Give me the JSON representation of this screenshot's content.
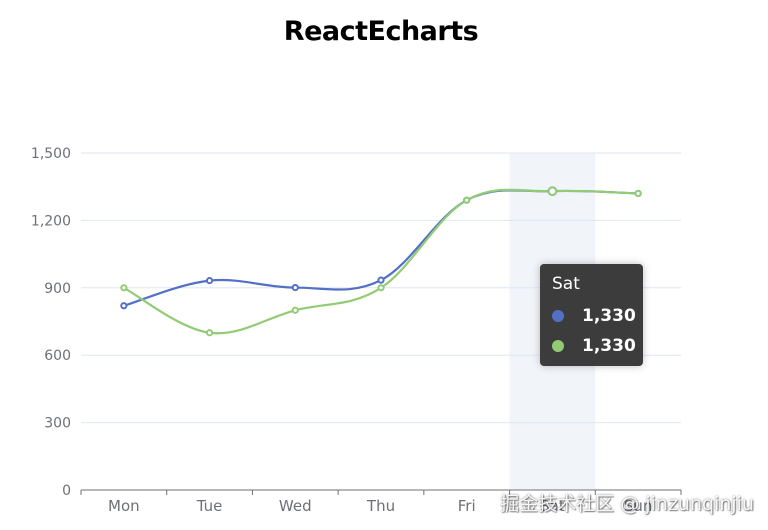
{
  "chart_data": {
    "type": "line",
    "title": "ReactEcharts",
    "categories": [
      "Mon",
      "Tue",
      "Wed",
      "Thu",
      "Fri",
      "Sat",
      "Sun"
    ],
    "ylim": [
      0,
      1500
    ],
    "yticks": [
      0,
      300,
      600,
      900,
      1200,
      1500
    ],
    "ytick_labels": [
      "0",
      "300",
      "600",
      "900",
      "1,200",
      "1,500"
    ],
    "grid": true,
    "smooth": true,
    "highlighted_category": "Sat",
    "series": [
      {
        "values": [
          820,
          932,
          901,
          934,
          1290,
          1330,
          1320
        ],
        "color": "#5470c6"
      },
      {
        "values": [
          900,
          700,
          800,
          900,
          1290,
          1330,
          1320
        ],
        "color": "#91cc75"
      }
    ]
  },
  "tooltip": {
    "title": "Sat",
    "rows": [
      {
        "value": "1,330",
        "color": "#5470c6"
      },
      {
        "value": "1,330",
        "color": "#91cc75"
      }
    ]
  },
  "watermark": "掘金技术社区 @ jinzunqinjiu"
}
